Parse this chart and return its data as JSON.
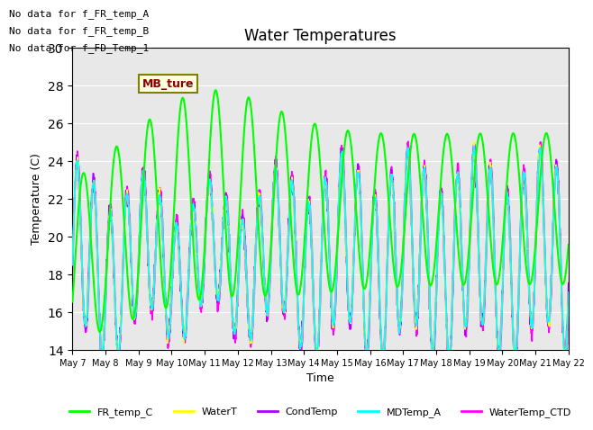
{
  "title": "Water Temperatures",
  "xlabel": "Time",
  "ylabel": "Temperature (C)",
  "ylim": [
    14,
    30
  ],
  "yticks": [
    14,
    16,
    18,
    20,
    22,
    24,
    26,
    28,
    30
  ],
  "plot_bg_color": "#e8e8e8",
  "fig_bg_color": "#ffffff",
  "annotations": [
    "No data for f_FR_temp_A",
    "No data for f_FR_temp_B",
    "No data for f_FD_Temp_1"
  ],
  "cursor_annotation": "MB_ture",
  "legend_entries": [
    "FR_temp_C",
    "WaterT",
    "CondTemp",
    "MDTemp_A",
    "WaterTemp_CTD"
  ],
  "legend_colors": [
    "#00ff00",
    "#ffff00",
    "#aa00ff",
    "#00ffff",
    "#ff00ff"
  ],
  "x_tick_labels": [
    "May 7",
    "May 8",
    "May 9",
    "May 10",
    "May 11",
    "May 12",
    "May 13",
    "May 14",
    "May 15",
    "May 16",
    "May 17",
    "May 18",
    "May 19",
    "May 20",
    "May 21",
    "May 22"
  ],
  "num_points": 2000,
  "days": 15,
  "grid_color": "#ffffff",
  "linewidth_green": 1.5,
  "linewidth_others": 1.2,
  "font_size_ticks": 7,
  "font_size_labels": 9,
  "font_size_title": 12,
  "font_size_annot": 8,
  "font_size_legend": 8
}
